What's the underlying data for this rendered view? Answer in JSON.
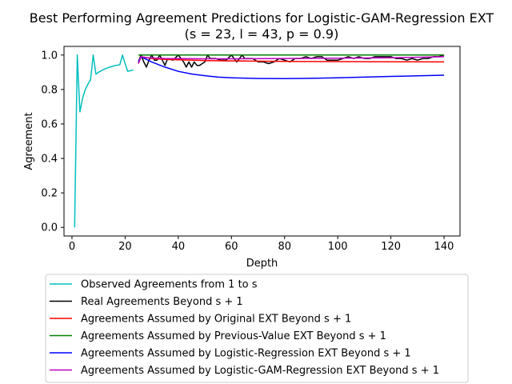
{
  "chart_data": {
    "type": "line",
    "title": "Best Performing Agreement Predictions for Logistic-GAM-Regression EXT",
    "subtitle": "(s = 23, l = 43, p = 0.9)",
    "xlabel": "Depth",
    "ylabel": "Agreement",
    "xlim": [
      -3,
      146
    ],
    "ylim": [
      -0.05,
      1.05
    ],
    "xticks": [
      0,
      20,
      40,
      60,
      80,
      100,
      120,
      140
    ],
    "yticks": [
      0.0,
      0.2,
      0.4,
      0.6,
      0.8,
      1.0
    ],
    "ytick_labels": [
      "0.0",
      "0.2",
      "0.4",
      "0.6",
      "0.8",
      "1.0"
    ],
    "grid": false,
    "legend_position": "below-plot",
    "series": [
      {
        "name": "Observed Agreements from 1 to s",
        "color": "#00bfbf",
        "x": [
          1,
          2,
          3,
          4,
          5,
          6,
          7,
          8,
          9,
          10,
          12,
          14,
          16,
          18,
          19,
          20,
          21,
          23
        ],
        "y": [
          0.0,
          1.0,
          0.67,
          0.75,
          0.8,
          0.83,
          0.857,
          1.0,
          0.889,
          0.9,
          0.917,
          0.929,
          0.938,
          0.944,
          1.0,
          0.95,
          0.905,
          0.913
        ]
      },
      {
        "name": "Real Agreements Beyond s + 1",
        "color": "#000000",
        "x": [
          25,
          26,
          27,
          28,
          29,
          30,
          31,
          32,
          33,
          34,
          35,
          36,
          38,
          40,
          41,
          42,
          43,
          44,
          45,
          46,
          47,
          48,
          50,
          51,
          52,
          54,
          56,
          58,
          60,
          61,
          62,
          63,
          64,
          65,
          66,
          68,
          70,
          72,
          74,
          76,
          78,
          80,
          82,
          84,
          86,
          88,
          90,
          92,
          94,
          96,
          98,
          100,
          102,
          104,
          106,
          108,
          110,
          112,
          114,
          116,
          118,
          120,
          122,
          124,
          126,
          128,
          130,
          132,
          134,
          136,
          138,
          140
        ],
        "y": [
          0.96,
          1.0,
          0.96,
          0.93,
          0.97,
          1.0,
          0.97,
          0.97,
          1.0,
          0.97,
          0.94,
          0.98,
          0.97,
          1.0,
          0.98,
          0.96,
          0.93,
          0.96,
          0.93,
          0.96,
          0.94,
          0.94,
          0.96,
          1.0,
          0.98,
          0.98,
          0.97,
          0.97,
          1.0,
          0.98,
          0.96,
          0.98,
          1.0,
          0.98,
          0.98,
          0.98,
          0.96,
          0.96,
          0.95,
          0.96,
          0.98,
          0.97,
          0.96,
          0.98,
          0.98,
          0.99,
          0.98,
          0.99,
          0.99,
          0.97,
          0.97,
          0.97,
          0.98,
          0.99,
          0.98,
          0.99,
          0.98,
          0.98,
          0.99,
          0.99,
          0.99,
          0.99,
          0.98,
          0.98,
          0.97,
          0.98,
          0.97,
          0.98,
          0.98,
          0.99,
          0.99,
          1.0
        ]
      },
      {
        "name": "Agreements Assumed by Original EXT Beyond s + 1",
        "color": "#ff0000",
        "x": [
          25,
          26,
          28,
          30,
          35,
          40,
          50,
          60,
          80,
          100,
          120,
          140
        ],
        "y": [
          0.95,
          0.99,
          0.985,
          0.98,
          0.975,
          0.972,
          0.968,
          0.966,
          0.963,
          0.962,
          0.961,
          0.96
        ]
      },
      {
        "name": "Agreements Assumed by Previous-Value EXT Beyond s + 1",
        "color": "#008000",
        "x": [
          25,
          140
        ],
        "y": [
          1.0,
          1.0
        ]
      },
      {
        "name": "Agreements Assumed by Logistic-Regression EXT Beyond s + 1",
        "color": "#0000ff",
        "x": [
          25,
          26,
          28,
          30,
          35,
          40,
          45,
          50,
          55,
          60,
          70,
          80,
          90,
          100,
          110,
          120,
          130,
          140
        ],
        "y": [
          0.96,
          0.99,
          0.975,
          0.96,
          0.93,
          0.905,
          0.89,
          0.88,
          0.872,
          0.868,
          0.864,
          0.863,
          0.865,
          0.868,
          0.872,
          0.876,
          0.879,
          0.883
        ]
      },
      {
        "name": "Agreements Assumed by Logistic-GAM-Regression EXT Beyond s + 1",
        "color": "#bf00bf",
        "x": [
          25,
          26,
          28,
          30,
          35,
          40,
          50,
          60,
          80,
          100,
          120,
          140
        ],
        "y": [
          0.95,
          0.99,
          0.985,
          0.983,
          0.98,
          0.979,
          0.978,
          0.978,
          0.98,
          0.982,
          0.984,
          0.99
        ]
      }
    ]
  }
}
